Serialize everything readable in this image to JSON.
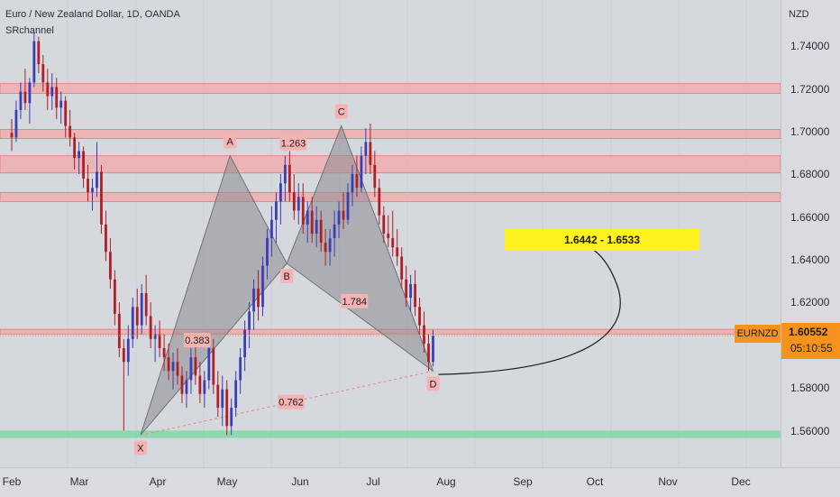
{
  "header": {
    "title": "Euro / New Zealand Dollar, 1D, OANDA",
    "indicator": "SRchannel"
  },
  "price_axis": {
    "currency": "NZD",
    "ticks": [
      "1.74000",
      "1.72000",
      "1.70000",
      "1.68000",
      "1.66000",
      "1.64000",
      "1.62000",
      "1.58000",
      "1.56000"
    ]
  },
  "time_axis": {
    "ticks": [
      "Feb",
      "Mar",
      "Apr",
      "May",
      "Jun",
      "Jul",
      "Aug",
      "Sep",
      "Oct",
      "Nov",
      "Dec"
    ]
  },
  "symbol_tag": "EURNZD",
  "last_price": {
    "price": "1.60552",
    "countdown": "05:10:55"
  },
  "target_box": "1.6442 - 1.6533",
  "colors": {
    "bull": "#3b3fb5",
    "bear": "#b01f25",
    "sr_band": "#f1a8a8",
    "support_band": "#7fd9a6",
    "pattern_fill": "#8a8c91",
    "tag": "#f7931a"
  },
  "chart_data": {
    "type": "candlestick",
    "title": "Euro / New Zealand Dollar, 1D, OANDA",
    "ylim": [
      1.548,
      1.752
    ],
    "x_range_days": [
      0,
      334
    ],
    "x_ticks": [
      "Feb",
      "Mar",
      "Apr",
      "May",
      "Jun",
      "Jul",
      "Aug",
      "Sep",
      "Oct",
      "Nov",
      "Dec"
    ],
    "pattern_points": [
      {
        "label": "X",
        "day": 59,
        "price": 1.562
      },
      {
        "label": "A",
        "day": 100,
        "price": 1.684
      },
      {
        "label": "B",
        "day": 126,
        "price": 1.637
      },
      {
        "label": "C",
        "day": 151,
        "price": 1.697
      },
      {
        "label": "D",
        "day": 193,
        "price": 1.59
      }
    ],
    "ratios": [
      {
        "text": "1.263",
        "day": 129,
        "price": 1.6895
      },
      {
        "text": "0.383",
        "day": 85,
        "price": 1.6035
      },
      {
        "text": "1.784",
        "day": 157,
        "price": 1.6205
      },
      {
        "text": "0.762",
        "day": 128,
        "price": 1.5765
      }
    ],
    "resistance_zones": [
      [
        1.7112,
        1.7155
      ],
      [
        1.6915,
        1.6955
      ],
      [
        1.6765,
        1.684
      ],
      [
        1.664,
        1.668
      ],
      [
        1.6062,
        1.6082
      ]
    ],
    "support_zone": [
      1.5608,
      1.564
    ],
    "target_zone": [
      1.6442,
      1.6533
    ],
    "candles": [
      [
        1.694,
        1.7,
        1.686,
        1.692
      ],
      [
        1.692,
        1.708,
        1.69,
        1.704
      ],
      [
        1.704,
        1.716,
        1.7,
        1.712
      ],
      [
        1.712,
        1.722,
        1.704,
        1.707
      ],
      [
        1.707,
        1.718,
        1.698,
        1.716
      ],
      [
        1.716,
        1.738,
        1.714,
        1.734
      ],
      [
        1.734,
        1.736,
        1.72,
        1.724
      ],
      [
        1.724,
        1.728,
        1.712,
        1.716
      ],
      [
        1.716,
        1.722,
        1.704,
        1.71
      ],
      [
        1.71,
        1.72,
        1.704,
        1.714
      ],
      [
        1.714,
        1.718,
        1.7,
        1.705
      ],
      [
        1.705,
        1.712,
        1.698,
        1.708
      ],
      [
        1.708,
        1.71,
        1.692,
        1.697
      ],
      [
        1.697,
        1.704,
        1.688,
        1.692
      ],
      [
        1.692,
        1.694,
        1.678,
        1.683
      ],
      [
        1.683,
        1.69,
        1.676,
        1.686
      ],
      [
        1.686,
        1.688,
        1.67,
        1.674
      ],
      [
        1.674,
        1.68,
        1.664,
        1.668
      ],
      [
        1.668,
        1.674,
        1.66,
        1.67
      ],
      [
        1.67,
        1.69,
        1.666,
        1.677
      ],
      [
        1.677,
        1.68,
        1.65,
        1.654
      ],
      [
        1.654,
        1.66,
        1.638,
        1.642
      ],
      [
        1.642,
        1.648,
        1.626,
        1.63
      ],
      [
        1.63,
        1.634,
        1.61,
        1.615
      ],
      [
        1.615,
        1.62,
        1.596,
        1.6
      ],
      [
        1.6,
        1.604,
        1.564,
        1.594
      ],
      [
        1.594,
        1.61,
        1.588,
        1.604
      ],
      [
        1.604,
        1.622,
        1.6,
        1.618
      ],
      [
        1.618,
        1.626,
        1.604,
        1.61
      ],
      [
        1.61,
        1.628,
        1.606,
        1.624
      ],
      [
        1.624,
        1.632,
        1.61,
        1.614
      ],
      [
        1.614,
        1.62,
        1.6,
        1.604
      ],
      [
        1.604,
        1.61,
        1.594,
        1.606
      ],
      [
        1.606,
        1.612,
        1.596,
        1.6
      ],
      [
        1.6,
        1.606,
        1.59,
        1.596
      ],
      [
        1.596,
        1.602,
        1.586,
        1.59
      ],
      [
        1.59,
        1.598,
        1.582,
        1.594
      ],
      [
        1.594,
        1.6,
        1.584,
        1.588
      ],
      [
        1.588,
        1.592,
        1.576,
        1.58
      ],
      [
        1.58,
        1.59,
        1.574,
        1.586
      ],
      [
        1.586,
        1.6,
        1.58,
        1.596
      ],
      [
        1.596,
        1.604,
        1.584,
        1.588
      ],
      [
        1.588,
        1.594,
        1.576,
        1.58
      ],
      [
        1.58,
        1.59,
        1.574,
        1.586
      ],
      [
        1.586,
        1.606,
        1.582,
        1.6
      ],
      [
        1.6,
        1.604,
        1.58,
        1.584
      ],
      [
        1.584,
        1.59,
        1.57,
        1.574
      ],
      [
        1.574,
        1.588,
        1.566,
        1.582
      ],
      [
        1.582,
        1.586,
        1.562,
        1.566
      ],
      [
        1.566,
        1.578,
        1.562,
        1.574
      ],
      [
        1.574,
        1.59,
        1.57,
        1.586
      ],
      [
        1.586,
        1.6,
        1.58,
        1.596
      ],
      [
        1.596,
        1.612,
        1.59,
        1.608
      ],
      [
        1.608,
        1.62,
        1.6,
        1.616
      ],
      [
        1.616,
        1.63,
        1.608,
        1.626
      ],
      [
        1.626,
        1.634,
        1.612,
        1.618
      ],
      [
        1.618,
        1.64,
        1.614,
        1.636
      ],
      [
        1.636,
        1.652,
        1.63,
        1.648
      ],
      [
        1.648,
        1.662,
        1.64,
        1.656
      ],
      [
        1.656,
        1.668,
        1.646,
        1.664
      ],
      [
        1.664,
        1.676,
        1.654,
        1.672
      ],
      [
        1.672,
        1.684,
        1.664,
        1.68
      ],
      [
        1.68,
        1.686,
        1.664,
        1.668
      ],
      [
        1.668,
        1.676,
        1.656,
        1.66
      ],
      [
        1.66,
        1.672,
        1.654,
        1.666
      ],
      [
        1.666,
        1.672,
        1.65,
        1.654
      ],
      [
        1.654,
        1.664,
        1.646,
        1.66
      ],
      [
        1.66,
        1.666,
        1.646,
        1.65
      ],
      [
        1.65,
        1.662,
        1.644,
        1.656
      ],
      [
        1.656,
        1.66,
        1.642,
        1.646
      ],
      [
        1.646,
        1.652,
        1.636,
        1.642
      ],
      [
        1.642,
        1.652,
        1.636,
        1.648
      ],
      [
        1.648,
        1.66,
        1.64,
        1.654
      ],
      [
        1.654,
        1.664,
        1.648,
        1.66
      ],
      [
        1.66,
        1.668,
        1.652,
        1.656
      ],
      [
        1.656,
        1.672,
        1.654,
        1.668
      ],
      [
        1.668,
        1.68,
        1.662,
        1.676
      ],
      [
        1.676,
        1.684,
        1.666,
        1.67
      ],
      [
        1.67,
        1.688,
        1.668,
        1.684
      ],
      [
        1.684,
        1.696,
        1.676,
        1.69
      ],
      [
        1.69,
        1.698,
        1.676,
        1.68
      ],
      [
        1.68,
        1.686,
        1.666,
        1.67
      ],
      [
        1.67,
        1.674,
        1.654,
        1.658
      ],
      [
        1.658,
        1.662,
        1.646,
        1.65
      ],
      [
        1.65,
        1.658,
        1.644,
        1.648
      ],
      [
        1.648,
        1.66,
        1.64,
        1.644
      ],
      [
        1.644,
        1.652,
        1.636,
        1.64
      ],
      [
        1.64,
        1.644,
        1.626,
        1.63
      ],
      [
        1.63,
        1.636,
        1.618,
        1.622
      ],
      [
        1.622,
        1.632,
        1.616,
        1.628
      ],
      [
        1.628,
        1.634,
        1.614,
        1.618
      ],
      [
        1.618,
        1.622,
        1.606,
        1.61
      ],
      [
        1.61,
        1.616,
        1.598,
        1.602
      ],
      [
        1.602,
        1.606,
        1.59,
        1.594
      ],
      [
        1.594,
        1.608,
        1.592,
        1.6055
      ]
    ]
  }
}
